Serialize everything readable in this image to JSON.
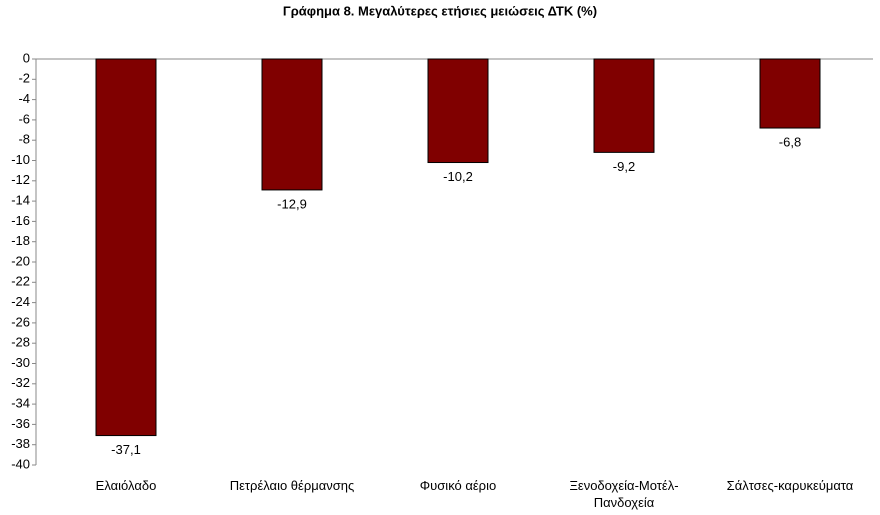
{
  "chart_data": {
    "type": "bar",
    "title": "Γράφημα 8. Μεγαλύτερες ετήσιες μειώσεις ΔΤΚ (%)",
    "categories": [
      "Ελαιόλαδο",
      "Πετρέλαιο θέρμανσης",
      "Φυσικό αέριο",
      "Ξενοδοχεία-Μοτέλ-Πανδοχεία",
      "Σάλτσες-καρυκεύματα"
    ],
    "values": [
      -37.1,
      -12.9,
      -10.2,
      -9.2,
      -6.8
    ],
    "value_labels": [
      "-37,1",
      "-12,9",
      "-10,2",
      "-9,2",
      "-6,8"
    ],
    "color": "#800000",
    "ylim": [
      -40,
      0
    ],
    "yticks": [
      0,
      -2,
      -4,
      -6,
      -8,
      -10,
      -12,
      -14,
      -16,
      -18,
      -20,
      -22,
      -24,
      -26,
      -28,
      -30,
      -32,
      -34,
      -36,
      -38,
      -40
    ],
    "grid": false
  }
}
